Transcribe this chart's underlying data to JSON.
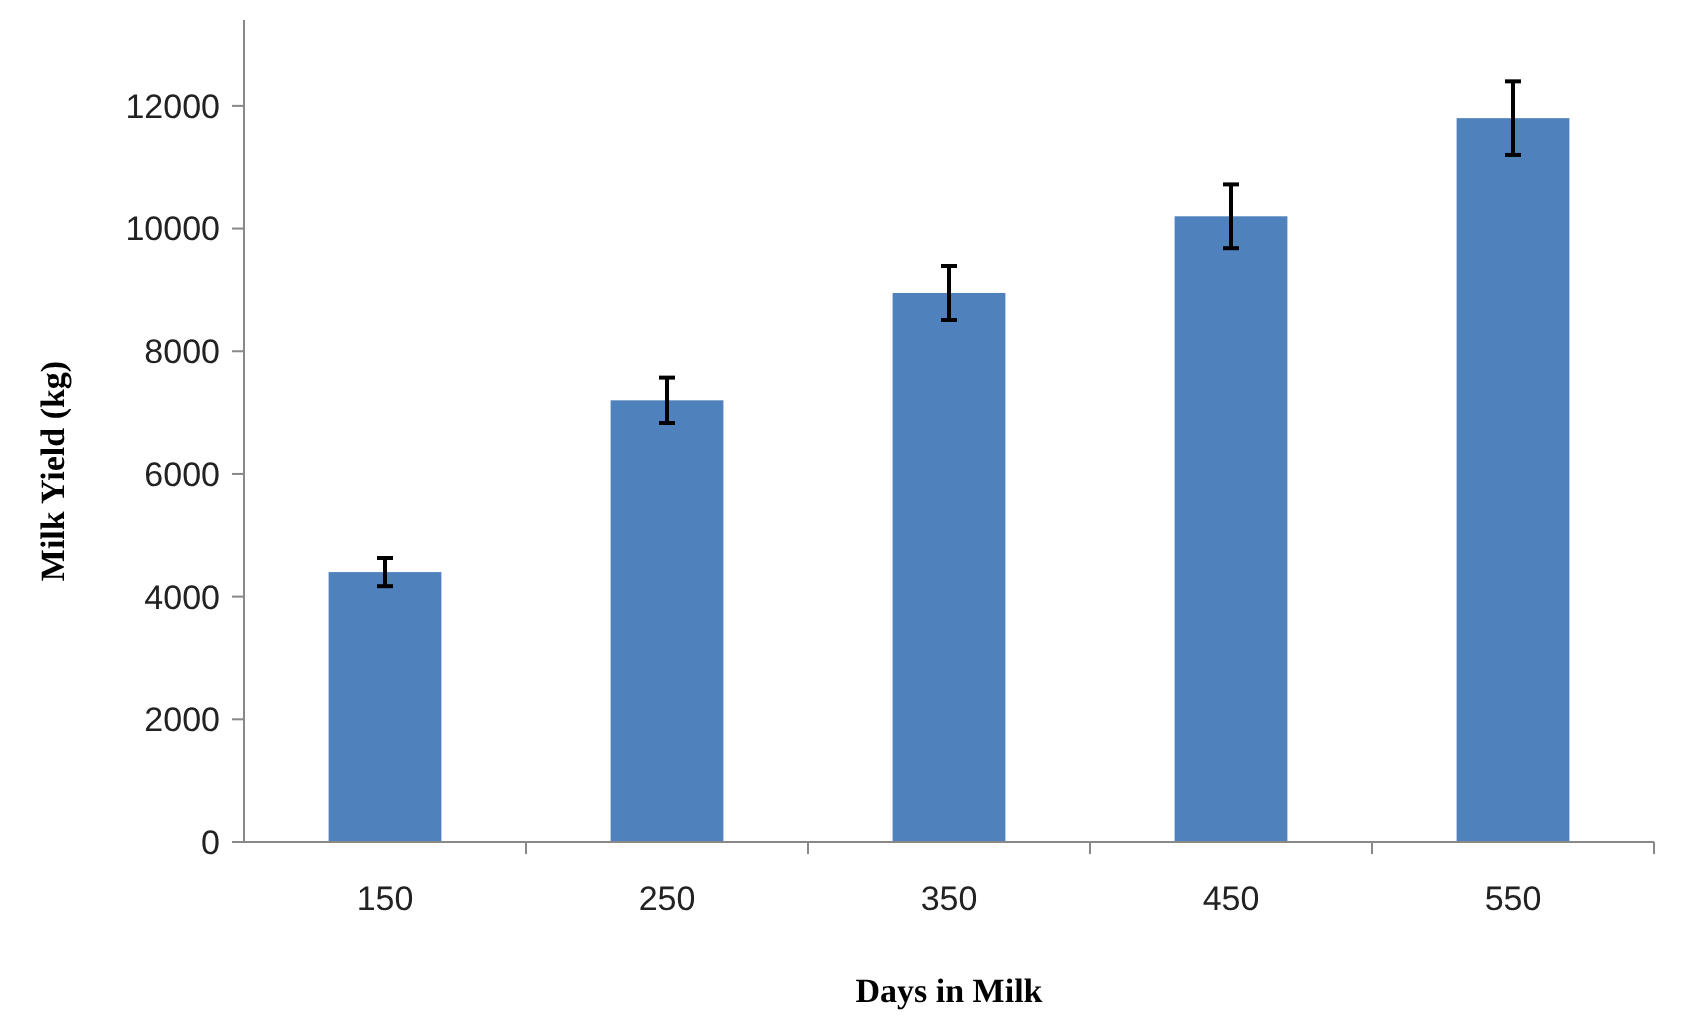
{
  "chart_data": {
    "type": "bar",
    "xlabel": "Days in Milk",
    "ylabel": "Milk Yield (kg)",
    "categories": [
      "150",
      "250",
      "350",
      "450",
      "550"
    ],
    "values": [
      4400,
      7200,
      8950,
      10200,
      11800
    ],
    "errors": [
      230,
      370,
      440,
      520,
      600
    ],
    "color": "#4f81bd",
    "ylim": [
      0,
      13400
    ],
    "yticks": [
      0,
      2000,
      4000,
      6000,
      8000,
      10000,
      12000
    ],
    "grid": false
  }
}
